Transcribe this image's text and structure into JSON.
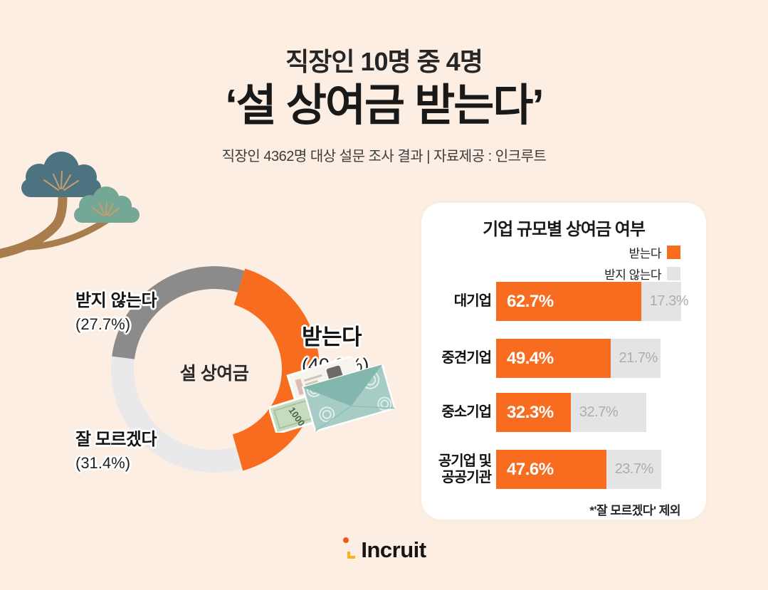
{
  "header": {
    "kicker": "직장인 10명 중 4명",
    "title": "‘설 상여금 받는다’",
    "subtitle": "직장인 4362명 대상 설문 조사 결과 | 자료제공 : 인크루트"
  },
  "donut": {
    "center_label": "설 상여금",
    "labels": {
      "no": {
        "name": "받지 않는다",
        "pct": "(27.7%)"
      },
      "unknown": {
        "name": "잘 모르겠다",
        "pct": "(31.4%)"
      },
      "yes": {
        "name": "받는다",
        "pct": "(40.9%)"
      }
    }
  },
  "bar_chart": {
    "title": "기업 규모별 상여금 여부",
    "legend": [
      {
        "label": "받는다"
      },
      {
        "label": "받지 않는다"
      }
    ],
    "rows": [
      {
        "category": "대기업",
        "yes": "62.7%",
        "no": "17.3%"
      },
      {
        "category": "중견기업",
        "yes": "49.4%",
        "no": "21.7%"
      },
      {
        "category": "중소기업",
        "yes": "32.3%",
        "no": "32.7%"
      },
      {
        "category": "공기업 및\n공공기관",
        "yes": "47.6%",
        "no": "23.7%"
      }
    ],
    "footnote": "*'잘 모르겠다' 제외"
  },
  "decor": {
    "money_note_label": "1000"
  },
  "logo": {
    "text": "Incruit"
  },
  "colors": {
    "background": "#FCEEE2",
    "accent_orange": "#F76C1F",
    "bar_gray": "#E4E4E4",
    "donut_dark_gray": "#8B8B8B",
    "donut_light_gray": "#E9E9EC",
    "pine_dark_teal": "#4D7380",
    "pine_light_teal": "#74A796",
    "branch_brown": "#A87C4B",
    "logo_orange": "#F0581F",
    "logo_yellow": "#F9B320"
  },
  "chart_data": [
    {
      "type": "pie",
      "title": "설 상여금",
      "start_angle_deg": 17,
      "unit": "%",
      "slices": [
        {
          "label": "받는다",
          "value": 40.9,
          "color": "#F76C1F",
          "emphasis": true
        },
        {
          "label": "잘 모르겠다",
          "value": 31.4,
          "color": "#E9E9EC"
        },
        {
          "label": "받지 않는다",
          "value": 27.7,
          "color": "#8B8B8B"
        }
      ]
    },
    {
      "type": "bar",
      "title": "기업 규모별 상여금 여부",
      "categories": [
        "대기업",
        "중견기업",
        "중소기업",
        "공기업 및 공공기관"
      ],
      "series": [
        {
          "name": "받는다",
          "color": "#F76C1F",
          "values": [
            62.7,
            49.4,
            32.3,
            47.6
          ]
        },
        {
          "name": "받지 않는다",
          "color": "#E4E4E4",
          "values": [
            17.3,
            21.7,
            32.7,
            23.7
          ]
        }
      ],
      "unit": "%",
      "xlim": [
        0,
        100
      ],
      "legend_position": "top-right",
      "footnote": "*'잘 모르겠다' 제외"
    }
  ]
}
